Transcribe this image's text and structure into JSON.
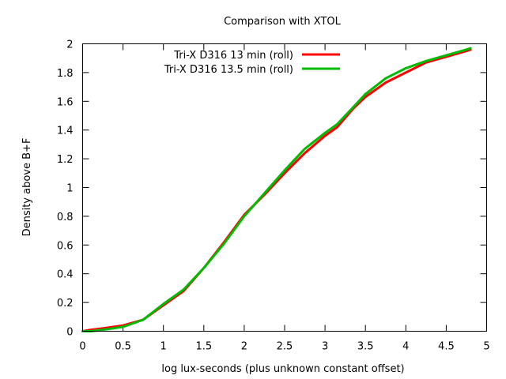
{
  "chart_data": {
    "type": "line",
    "title": "Comparison with XTOL",
    "xlabel": "log lux-seconds (plus unknown constant offset)",
    "ylabel": "Density above B+F",
    "xlim": [
      0,
      5
    ],
    "ylim": [
      0,
      2
    ],
    "xticks": [
      0,
      0.5,
      1,
      1.5,
      2,
      2.5,
      3,
      3.5,
      4,
      4.5,
      5
    ],
    "yticks": [
      0,
      0.2,
      0.4,
      0.6,
      0.8,
      1,
      1.2,
      1.4,
      1.6,
      1.8,
      2
    ],
    "xtick_labels": [
      "0",
      "0.5",
      "1",
      "1.5",
      "2",
      "2.5",
      "3",
      "3.5",
      "4",
      "4.5",
      "5"
    ],
    "ytick_labels": [
      "0",
      "0.2",
      "0.4",
      "0.6",
      "0.8",
      "1",
      "1.2",
      "1.4",
      "1.6",
      "1.8",
      "2"
    ],
    "grid": false,
    "legend_position": "top-right",
    "series": [
      {
        "name": "Tri-X D316 13 min (roll)",
        "color": "#ff0000",
        "x": [
          0.0,
          0.1,
          0.25,
          0.5,
          0.75,
          1.0,
          1.25,
          1.5,
          1.75,
          2.0,
          2.25,
          2.5,
          2.75,
          3.0,
          3.15,
          3.35,
          3.5,
          3.75,
          4.0,
          4.25,
          4.5,
          4.75,
          4.8
        ],
        "y": [
          0.0,
          0.01,
          0.02,
          0.04,
          0.08,
          0.18,
          0.28,
          0.44,
          0.62,
          0.81,
          0.95,
          1.1,
          1.24,
          1.36,
          1.42,
          1.55,
          1.63,
          1.73,
          1.8,
          1.87,
          1.91,
          1.95,
          1.96
        ]
      },
      {
        "name": "Tri-X D316 13.5 min (roll)",
        "color": "#00bb00",
        "x": [
          0.0,
          0.1,
          0.25,
          0.5,
          0.75,
          1.0,
          1.25,
          1.5,
          1.75,
          2.0,
          2.25,
          2.5,
          2.75,
          3.0,
          3.15,
          3.35,
          3.5,
          3.75,
          4.0,
          4.25,
          4.5,
          4.75,
          4.8
        ],
        "y": [
          0.0,
          0.0,
          0.01,
          0.03,
          0.08,
          0.19,
          0.29,
          0.44,
          0.61,
          0.8,
          0.96,
          1.12,
          1.27,
          1.38,
          1.44,
          1.56,
          1.65,
          1.76,
          1.83,
          1.88,
          1.92,
          1.96,
          1.97
        ]
      }
    ]
  }
}
